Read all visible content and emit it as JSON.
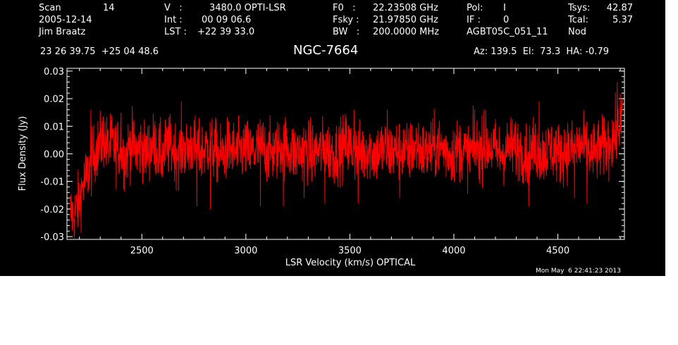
{
  "header": {
    "col1": [
      {
        "label": "Scan",
        "value": "14"
      },
      {
        "label": "2005-12-14",
        "value": ""
      },
      {
        "label": "Jim Braatz",
        "value": ""
      }
    ],
    "col2": [
      {
        "label": "V   :",
        "value": "3480.0 OPTI-LSR"
      },
      {
        "label": "Int :",
        "value": "00 09 06.6"
      },
      {
        "label": "LST :",
        "value": "+22 39 33.0"
      }
    ],
    "col3": [
      {
        "label": "F0   :",
        "value": "22.23508 GHz"
      },
      {
        "label": "Fsky :",
        "value": "21.97850 GHz"
      },
      {
        "label": "BW   :",
        "value": "200.0000 MHz"
      }
    ],
    "col4": [
      {
        "label": "Pol:",
        "value": "I"
      },
      {
        "label": "IF :",
        "value": "0"
      },
      {
        "label": "AGBT05C_051_11",
        "value": ""
      }
    ],
    "col5": [
      {
        "label": "Tsys:",
        "value": "42.87"
      },
      {
        "label": "Tcal:",
        "value": "5.37"
      },
      {
        "label": "Nod",
        "value": ""
      }
    ],
    "coords": "23 26 39.75  +25 04 48.6",
    "source": "NGC-7664",
    "azelha": "Az: 139.5  El:  73.3  HA: -0.79",
    "timestamp": "Mon May  6 22:41:23 2013"
  },
  "colors": {
    "background": "#000000",
    "foreground": "#ffffff",
    "spectrum": "#ff0000"
  },
  "chart_data": {
    "type": "line",
    "title": "NGC-7664",
    "xlabel": "LSR Velocity (km/s) OPTICAL",
    "ylabel": "Flux Density (Jy)",
    "xlim": [
      2140,
      4820
    ],
    "ylim": [
      -0.031,
      0.031
    ],
    "xticks": [
      2500,
      3000,
      3500,
      4000,
      4500
    ],
    "xtick_labels": [
      "2500",
      "3000",
      "3500",
      "4000",
      "4500"
    ],
    "yticks": [
      -0.03,
      -0.02,
      -0.01,
      0.0,
      0.01,
      0.02,
      0.03
    ],
    "ytick_labels": [
      "-0.03",
      "-0.02",
      "-0.01",
      "0.00",
      "0.01",
      "0.02",
      "0.03"
    ],
    "grid": false,
    "series": [
      {
        "x_start": 2155,
        "x_end": 4810,
        "values": [
          -0.021,
          -0.022,
          -0.018,
          -0.012,
          -0.008,
          -0.004,
          0.001,
          0.003,
          0.006,
          0.002,
          0.004,
          0.001,
          0.003,
          -0.002,
          0.002,
          0.004,
          0.001,
          0.003,
          0.0,
          0.002,
          0.004,
          0.001,
          -0.001,
          0.002,
          0.003,
          0.001,
          0.0,
          0.002,
          0.001,
          0.003,
          0.002,
          0.0,
          0.001,
          0.003,
          0.002,
          0.001,
          -0.001,
          0.001,
          0.002,
          0.001,
          0.0,
          0.001,
          0.002,
          0.0,
          0.001,
          0.002,
          0.003,
          0.001,
          0.0,
          0.001,
          0.002,
          0.003,
          0.002,
          0.001,
          0.0,
          0.001,
          0.002,
          0.001,
          0.0,
          0.001,
          0.001,
          0.002,
          0.001,
          0.0,
          0.001,
          0.002,
          0.004,
          0.002,
          0.001,
          0.0,
          0.001,
          0.002,
          0.001,
          0.0,
          0.001,
          0.002,
          0.001,
          0.0,
          0.001,
          0.002,
          0.001,
          0.0,
          0.002,
          0.003,
          0.001,
          0.0,
          0.001,
          0.002,
          0.003,
          0.002,
          0.001,
          0.0,
          0.001,
          0.002,
          0.001,
          0.0,
          0.001,
          0.002,
          0.001,
          0.002,
          0.003,
          0.002,
          0.001,
          0.0,
          0.001,
          0.002,
          0.003,
          0.002,
          0.001,
          0.0,
          0.001,
          0.002,
          0.001,
          0.0,
          0.001,
          0.002,
          0.001,
          0.0,
          0.001,
          0.002,
          0.001,
          0.002,
          0.003,
          0.002,
          0.001,
          0.0,
          0.001,
          0.002,
          0.003,
          0.004,
          0.006,
          0.008,
          0.013
        ],
        "noise_rms": 0.0055,
        "spikes": [
          {
            "x": 2255,
            "y": 0.016
          },
          {
            "x": 2400,
            "y": 0.015
          },
          {
            "x": 2690,
            "y": 0.019
          },
          {
            "x": 2765,
            "y": -0.019
          },
          {
            "x": 2830,
            "y": -0.02
          },
          {
            "x": 3070,
            "y": -0.019
          },
          {
            "x": 3180,
            "y": -0.019
          },
          {
            "x": 3280,
            "y": -0.016
          },
          {
            "x": 3380,
            "y": -0.018
          },
          {
            "x": 3520,
            "y": 0.016
          },
          {
            "x": 3540,
            "y": -0.018
          },
          {
            "x": 3680,
            "y": 0.016
          },
          {
            "x": 3740,
            "y": -0.016
          },
          {
            "x": 4100,
            "y": 0.016
          },
          {
            "x": 4145,
            "y": 0.016
          },
          {
            "x": 4360,
            "y": -0.019
          },
          {
            "x": 4410,
            "y": 0.019
          },
          {
            "x": 4580,
            "y": -0.016
          },
          {
            "x": 4640,
            "y": -0.018
          },
          {
            "x": 4785,
            "y": 0.026
          },
          {
            "x": 4800,
            "y": 0.022
          }
        ]
      }
    ]
  }
}
